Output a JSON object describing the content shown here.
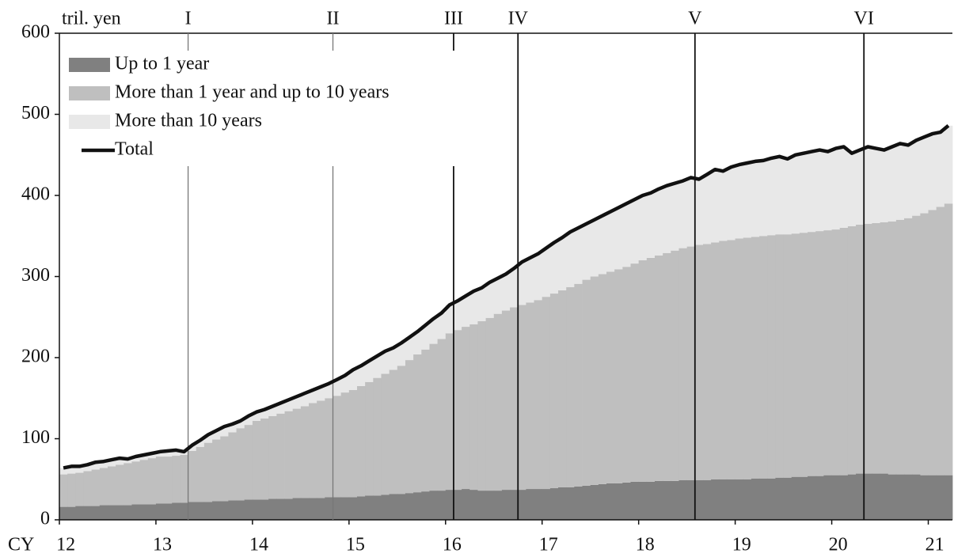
{
  "chart_data": {
    "type": "bar",
    "stacked": true,
    "y_label": "tril. yen",
    "x_label": "CY",
    "categories": [
      "12",
      null,
      null,
      null,
      null,
      null,
      null,
      null,
      null,
      null,
      null,
      null,
      "13",
      null,
      null,
      null,
      null,
      null,
      null,
      null,
      null,
      null,
      null,
      null,
      "14",
      null,
      null,
      null,
      null,
      null,
      null,
      null,
      null,
      null,
      null,
      null,
      "15",
      null,
      null,
      null,
      null,
      null,
      null,
      null,
      null,
      null,
      null,
      null,
      "16",
      null,
      null,
      null,
      null,
      null,
      null,
      null,
      null,
      null,
      null,
      null,
      "17",
      null,
      null,
      null,
      null,
      null,
      null,
      null,
      null,
      null,
      null,
      null,
      "18",
      null,
      null,
      null,
      null,
      null,
      null,
      null,
      null,
      null,
      null,
      null,
      "19",
      null,
      null,
      null,
      null,
      null,
      null,
      null,
      null,
      null,
      null,
      null,
      "20",
      null,
      null,
      null,
      null,
      null,
      null,
      null,
      null,
      null,
      null,
      null,
      "21",
      null,
      null
    ],
    "series": [
      {
        "name": "Up to 1 year",
        "color": "#808080",
        "values": [
          16,
          16,
          17,
          17,
          17,
          18,
          18,
          18,
          18,
          19,
          19,
          19,
          20,
          20,
          21,
          21,
          22,
          22,
          22,
          23,
          23,
          24,
          24,
          25,
          25,
          25,
          26,
          26,
          26,
          27,
          27,
          27,
          27,
          28,
          28,
          28,
          28,
          29,
          30,
          30,
          31,
          32,
          32,
          33,
          34,
          35,
          36,
          36,
          37,
          37,
          38,
          37,
          36,
          36,
          36,
          37,
          37,
          37,
          38,
          38,
          38,
          39,
          40,
          40,
          41,
          42,
          43,
          44,
          45,
          45,
          46,
          47,
          47,
          47,
          48,
          48,
          48,
          49,
          49,
          49,
          49,
          50,
          50,
          50,
          50,
          50,
          51,
          51,
          51,
          52,
          52,
          53,
          53,
          54,
          54,
          55,
          55,
          55,
          56,
          57,
          57,
          57,
          57,
          56,
          56,
          56,
          56,
          55,
          55,
          55,
          55
        ]
      },
      {
        "name": "More than 1 year and up to 10 years",
        "color": "#bfbfbf",
        "values": [
          40,
          41,
          41,
          43,
          45,
          46,
          48,
          50,
          52,
          53,
          55,
          57,
          58,
          58,
          58,
          59,
          63,
          68,
          73,
          76,
          80,
          84,
          89,
          92,
          97,
          100,
          102,
          105,
          108,
          110,
          113,
          117,
          120,
          122,
          125,
          129,
          132,
          136,
          140,
          145,
          149,
          153,
          158,
          164,
          170,
          175,
          181,
          187,
          193,
          197,
          200,
          204,
          209,
          213,
          218,
          221,
          225,
          228,
          230,
          233,
          237,
          240,
          243,
          247,
          250,
          254,
          257,
          259,
          261,
          264,
          266,
          269,
          273,
          276,
          278,
          281,
          284,
          286,
          288,
          290,
          291,
          292,
          294,
          295,
          297,
          298,
          298,
          299,
          300,
          300,
          300,
          300,
          301,
          301,
          302,
          302,
          303,
          305,
          306,
          307,
          308,
          309,
          310,
          312,
          314,
          316,
          319,
          323,
          327,
          331,
          335
        ]
      },
      {
        "name": "More than 10 years",
        "color": "#e8e8e8",
        "values": [
          8,
          9,
          8,
          8,
          9,
          8,
          8,
          8,
          5,
          6,
          6,
          6,
          6,
          7,
          7,
          4,
          7,
          8,
          10,
          11,
          12,
          10,
          9,
          11,
          11,
          11,
          12,
          13,
          14,
          15,
          16,
          16,
          17,
          18,
          20,
          21,
          25,
          25,
          26,
          27,
          28,
          27,
          28,
          28,
          28,
          30,
          31,
          32,
          35,
          36,
          38,
          41,
          41,
          44,
          44,
          45,
          48,
          53,
          55,
          57,
          60,
          63,
          65,
          68,
          69,
          69,
          70,
          72,
          74,
          76,
          78,
          79,
          80,
          80,
          82,
          83,
          83,
          83,
          85,
          81,
          86,
          90,
          86,
          90,
          91,
          92,
          93,
          93,
          95,
          96,
          93,
          97,
          98,
          99,
          100,
          97,
          100,
          100,
          90,
          92,
          95,
          92,
          89,
          92,
          94,
          90,
          93,
          94,
          94,
          92,
          96
        ]
      },
      {
        "name": "Total",
        "type": "line",
        "color": "#111111",
        "values": [
          64,
          66,
          66,
          68,
          71,
          72,
          74,
          76,
          75,
          78,
          80,
          82,
          84,
          85,
          86,
          84,
          92,
          98,
          105,
          110,
          115,
          118,
          122,
          128,
          133,
          136,
          140,
          144,
          148,
          152,
          156,
          160,
          164,
          168,
          173,
          178,
          185,
          190,
          196,
          202,
          208,
          212,
          218,
          225,
          232,
          240,
          248,
          255,
          265,
          270,
          276,
          282,
          286,
          293,
          298,
          303,
          310,
          318,
          323,
          328,
          335,
          342,
          348,
          355,
          360,
          365,
          370,
          375,
          380,
          385,
          390,
          395,
          400,
          403,
          408,
          412,
          415,
          418,
          422,
          420,
          426,
          432,
          430,
          435,
          438,
          440,
          442,
          443,
          446,
          448,
          445,
          450,
          452,
          454,
          456,
          454,
          458,
          460,
          452,
          456,
          460,
          458,
          456,
          460,
          464,
          462,
          468,
          472,
          476,
          478,
          486
        ]
      }
    ],
    "annotations": [
      {
        "label": "I",
        "index": 16,
        "color": "#777777"
      },
      {
        "label": "II",
        "index": 34,
        "color": "#777777"
      },
      {
        "label": "III",
        "index": 49,
        "color": "#111111"
      },
      {
        "label": "IV",
        "index": 57,
        "color": "#111111"
      },
      {
        "label": "V",
        "index": 79,
        "color": "#111111"
      },
      {
        "label": "VI",
        "index": 100,
        "color": "#111111"
      }
    ],
    "ylim": [
      0,
      600
    ],
    "yticks": [
      0,
      100,
      200,
      300,
      400,
      500,
      600
    ],
    "legend": "upper left"
  }
}
